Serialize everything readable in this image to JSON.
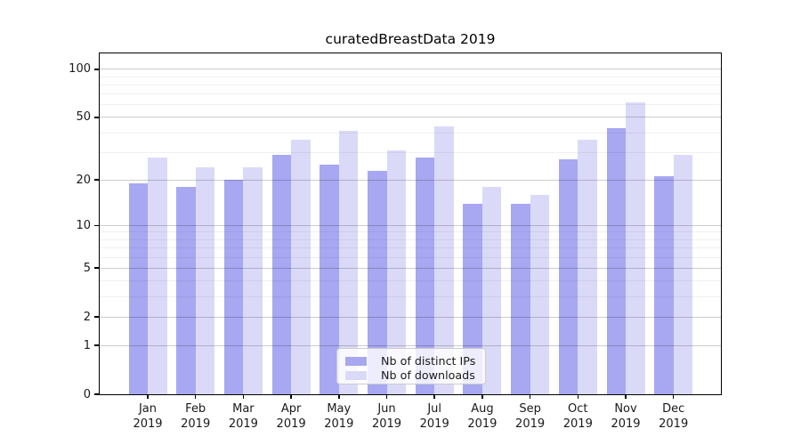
{
  "figure": {
    "title": "curatedBreastData 2019"
  },
  "chart_data": {
    "type": "bar",
    "title": "curatedBreastData 2019",
    "categories": [
      "Jan",
      "Feb",
      "Mar",
      "Apr",
      "May",
      "Jun",
      "Jul",
      "Aug",
      "Sep",
      "Oct",
      "Nov",
      "Dec"
    ],
    "category_year": "2019",
    "series": [
      {
        "key": "distinct-ips",
        "name": "Nb of distinct IPs",
        "color": "#a7a7f2",
        "values": [
          19,
          18,
          20,
          29,
          25,
          23,
          28,
          14,
          14,
          27,
          43,
          21
        ]
      },
      {
        "key": "downloads",
        "name": "Nb of downloads",
        "color": "#dadaf8",
        "values": [
          28,
          24,
          24,
          36,
          41,
          31,
          44,
          18,
          16,
          36,
          62,
          29
        ]
      }
    ],
    "xlabel": "",
    "ylabel": "",
    "y_axis": {
      "scale": "log10(value+1)",
      "tick_values": [
        0,
        1,
        2,
        5,
        10,
        20,
        50,
        100
      ],
      "minor_gridline_values": [
        3,
        4,
        6,
        7,
        8,
        9,
        30,
        40,
        60,
        70,
        80,
        90
      ],
      "ylim": [
        0,
        126
      ]
    },
    "grid": true,
    "legend_position": "bottom-center"
  }
}
